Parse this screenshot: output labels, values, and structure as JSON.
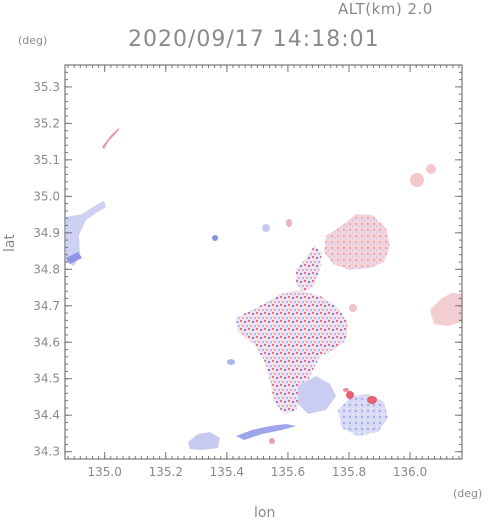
{
  "header": {
    "altitude": "ALT(km) 2.0",
    "datetime": "2020/09/17 14:18:01"
  },
  "axes": {
    "lat_unit": "(deg)",
    "lon_unit": "(deg)",
    "xlabel": "lon",
    "ylabel": "lat",
    "x_ticks": [
      "135.0",
      "135.2",
      "135.4",
      "135.6",
      "135.8",
      "136.0"
    ],
    "y_ticks": [
      "34.3",
      "34.4",
      "34.5",
      "34.6",
      "34.7",
      "34.8",
      "34.9",
      "35.0",
      "35.1",
      "35.2",
      "35.3"
    ],
    "xlim": [
      134.87,
      136.17
    ],
    "ylim": [
      34.28,
      35.36
    ]
  },
  "colors": {
    "frame": "#777777",
    "light_blue": "#b8bfe8",
    "blue": "#6a6ee0",
    "light_red": "#f3c8cc",
    "red": "#e06a78",
    "pale": "#f1eaf6"
  }
}
